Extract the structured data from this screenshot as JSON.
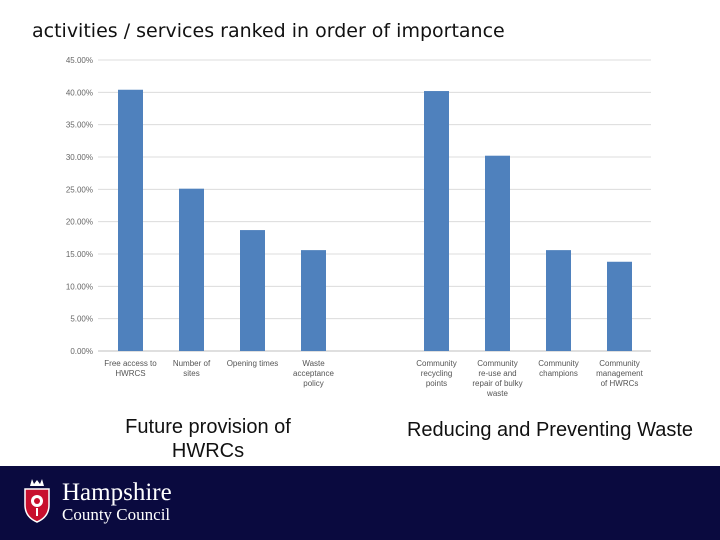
{
  "title": "activities / services ranked in order of importance",
  "captions": {
    "left": "Future provision of HWRCs",
    "right": "Reducing and Preventing Waste"
  },
  "footer": {
    "org_line1": "Hampshire",
    "org_line2": "County Council",
    "logo_icon": "county-crest-icon",
    "background": "#0a0a3f"
  },
  "chart_data": {
    "type": "bar",
    "title": "",
    "xlabel": "",
    "ylabel": "",
    "ylim": [
      0,
      45
    ],
    "yticks": [
      "0.00%",
      "5.00%",
      "10.00%",
      "15.00%",
      "20.00%",
      "25.00%",
      "30.00%",
      "35.00%",
      "40.00%",
      "45.00%"
    ],
    "grid": true,
    "bar_color": "#4f81bd",
    "groups": [
      {
        "name": "Future provision of HWRCs",
        "categories": [
          [
            "Free access to",
            "HWRCS"
          ],
          [
            "Number of",
            "sites"
          ],
          [
            "Opening times"
          ],
          [
            "Waste",
            "acceptance",
            "policy"
          ]
        ],
        "values": [
          40.4,
          25.1,
          18.7,
          15.6
        ]
      },
      {
        "name": "Reducing and Preventing Waste",
        "categories": [
          [
            "Community",
            "recycling",
            "points"
          ],
          [
            "Community",
            "re-use and",
            "repair of bulky",
            "waste"
          ],
          [
            "Community",
            "champions"
          ],
          [
            "Community",
            "management",
            "of HWRCs"
          ]
        ],
        "values": [
          40.2,
          30.2,
          15.6,
          13.8
        ]
      }
    ]
  }
}
